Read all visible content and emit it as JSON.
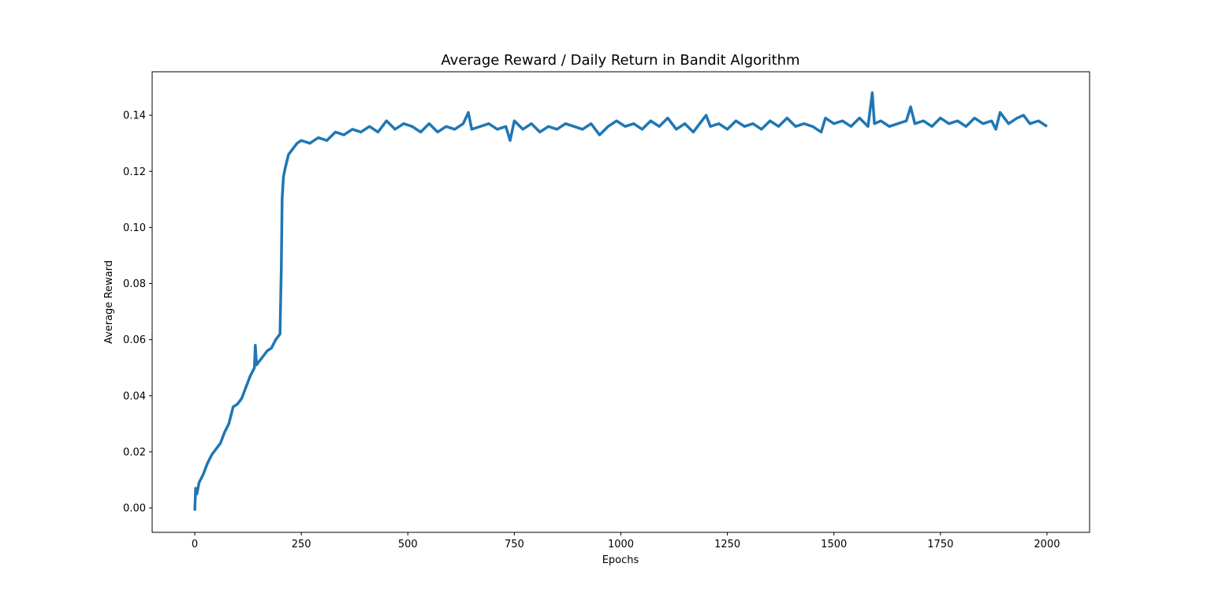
{
  "chart_data": {
    "type": "line",
    "title": "Average Reward / Daily Return in Bandit Algorithm",
    "xlabel": "Epochs",
    "ylabel": "Average Reward",
    "x": [
      0,
      2,
      5,
      10,
      20,
      30,
      40,
      50,
      60,
      70,
      80,
      90,
      100,
      110,
      120,
      130,
      140,
      142,
      145,
      150,
      160,
      170,
      180,
      190,
      200,
      203,
      205,
      208,
      212,
      220,
      230,
      240,
      250,
      270,
      290,
      310,
      330,
      350,
      370,
      390,
      410,
      430,
      450,
      470,
      490,
      510,
      530,
      550,
      570,
      590,
      610,
      630,
      642,
      650,
      670,
      690,
      710,
      730,
      740,
      750,
      770,
      790,
      810,
      830,
      850,
      870,
      890,
      910,
      930,
      950,
      970,
      990,
      1010,
      1030,
      1050,
      1070,
      1090,
      1110,
      1130,
      1150,
      1170,
      1190,
      1200,
      1210,
      1230,
      1250,
      1270,
      1290,
      1310,
      1330,
      1350,
      1370,
      1390,
      1410,
      1430,
      1450,
      1470,
      1480,
      1500,
      1520,
      1540,
      1560,
      1580,
      1590,
      1595,
      1610,
      1630,
      1650,
      1670,
      1680,
      1690,
      1710,
      1730,
      1750,
      1770,
      1790,
      1810,
      1830,
      1850,
      1870,
      1880,
      1890,
      1910,
      1930,
      1945,
      1960,
      1980,
      2000
    ],
    "series": [
      {
        "name": "Average Reward",
        "color": "#1f77b4",
        "values": [
          -0.001,
          0.007,
          0.005,
          0.009,
          0.012,
          0.016,
          0.019,
          0.021,
          0.023,
          0.027,
          0.03,
          0.036,
          0.037,
          0.039,
          0.043,
          0.047,
          0.05,
          0.058,
          0.051,
          0.052,
          0.054,
          0.056,
          0.057,
          0.06,
          0.062,
          0.085,
          0.11,
          0.118,
          0.121,
          0.126,
          0.128,
          0.13,
          0.131,
          0.13,
          0.132,
          0.131,
          0.134,
          0.133,
          0.135,
          0.134,
          0.136,
          0.134,
          0.138,
          0.135,
          0.137,
          0.136,
          0.134,
          0.137,
          0.134,
          0.136,
          0.135,
          0.137,
          0.141,
          0.135,
          0.136,
          0.137,
          0.135,
          0.136,
          0.131,
          0.138,
          0.135,
          0.137,
          0.134,
          0.136,
          0.135,
          0.137,
          0.136,
          0.135,
          0.137,
          0.133,
          0.136,
          0.138,
          0.136,
          0.137,
          0.135,
          0.138,
          0.136,
          0.139,
          0.135,
          0.137,
          0.134,
          0.138,
          0.14,
          0.136,
          0.137,
          0.135,
          0.138,
          0.136,
          0.137,
          0.135,
          0.138,
          0.136,
          0.139,
          0.136,
          0.137,
          0.136,
          0.134,
          0.139,
          0.137,
          0.138,
          0.136,
          0.139,
          0.136,
          0.148,
          0.137,
          0.138,
          0.136,
          0.137,
          0.138,
          0.143,
          0.137,
          0.138,
          0.136,
          0.139,
          0.137,
          0.138,
          0.136,
          0.139,
          0.137,
          0.138,
          0.135,
          0.141,
          0.137,
          0.139,
          0.14,
          0.137,
          0.138,
          0.136
        ]
      }
    ],
    "xlim": [
      -100,
      2100
    ],
    "xticks": [
      0,
      250,
      500,
      750,
      1000,
      1250,
      1500,
      1750,
      2000
    ],
    "ylim": [
      -0.0087,
      0.1555
    ],
    "yticks": [
      {
        "value": 0,
        "label": "0.00"
      },
      {
        "value": 0.02,
        "label": "0.02"
      },
      {
        "value": 0.04,
        "label": "0.04"
      },
      {
        "value": 0.06,
        "label": "0.06"
      },
      {
        "value": 0.08,
        "label": "0.08"
      },
      {
        "value": 0.1,
        "label": "0.10"
      },
      {
        "value": 0.12,
        "label": "0.12"
      },
      {
        "value": 0.14,
        "label": "0.14"
      }
    ],
    "grid": false
  }
}
